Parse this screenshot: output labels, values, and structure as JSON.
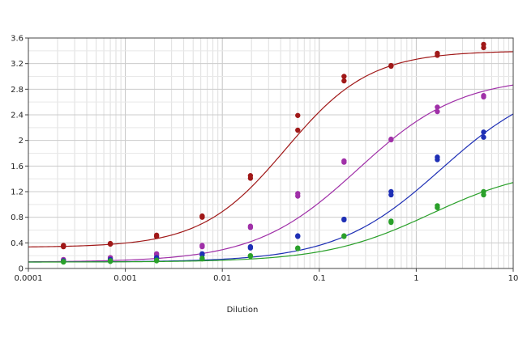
{
  "chart_data": {
    "type": "scatter",
    "title": "",
    "xlabel": "Dilution",
    "ylabel": "",
    "x_scale": "log",
    "xlim": [
      0.0001,
      10
    ],
    "ylim": [
      0,
      3.6
    ],
    "grid": true,
    "legend": "none",
    "x_tick_labels": [
      "0.0001",
      "0.001",
      "0.01",
      "0.1",
      "1",
      "10"
    ],
    "y_tick_labels": [
      "0",
      "0.4",
      "0.8",
      "1.2",
      "1.6",
      "2",
      "2.4",
      "2.8",
      "3.2",
      "3.6"
    ],
    "x": [
      0.00023,
      0.0007,
      0.0021,
      0.0062,
      0.0195,
      0.06,
      0.18,
      0.55,
      1.65,
      4.95
    ],
    "series": [
      {
        "color": "#a01818",
        "points": [
          [
            0.00023,
            0.34
          ],
          [
            0.00023,
            0.36
          ],
          [
            0.0007,
            0.38
          ],
          [
            0.0007,
            0.39
          ],
          [
            0.0021,
            0.5
          ],
          [
            0.0021,
            0.52
          ],
          [
            0.0062,
            0.8
          ],
          [
            0.0062,
            0.82
          ],
          [
            0.0195,
            1.41
          ],
          [
            0.0195,
            1.45
          ],
          [
            0.06,
            2.16
          ],
          [
            0.06,
            2.39
          ],
          [
            0.18,
            2.93
          ],
          [
            0.18,
            3.0
          ],
          [
            0.55,
            3.16
          ],
          [
            0.55,
            3.17
          ],
          [
            1.65,
            3.33
          ],
          [
            1.65,
            3.36
          ],
          [
            4.95,
            3.45
          ],
          [
            4.95,
            3.5
          ]
        ],
        "fit": {
          "bottom": 0.33,
          "top": 3.4,
          "ec50": 0.045,
          "hill": 1.0
        }
      },
      {
        "color": "#a030a8",
        "points": [
          [
            0.00023,
            0.12
          ],
          [
            0.00023,
            0.14
          ],
          [
            0.0007,
            0.16
          ],
          [
            0.0007,
            0.17
          ],
          [
            0.0021,
            0.21
          ],
          [
            0.0021,
            0.23
          ],
          [
            0.0062,
            0.34
          ],
          [
            0.0062,
            0.36
          ],
          [
            0.0195,
            0.64
          ],
          [
            0.0195,
            0.66
          ],
          [
            0.06,
            1.13
          ],
          [
            0.06,
            1.17
          ],
          [
            0.18,
            1.66
          ],
          [
            0.18,
            1.68
          ],
          [
            0.55,
            2.01
          ],
          [
            0.55,
            2.02
          ],
          [
            1.65,
            2.45
          ],
          [
            1.65,
            2.52
          ],
          [
            4.95,
            2.68
          ],
          [
            4.95,
            2.7
          ]
        ],
        "fit": {
          "bottom": 0.1,
          "top": 3.0,
          "ec50": 0.25,
          "hill": 0.82
        }
      },
      {
        "color": "#1e2fb5",
        "points": [
          [
            0.00023,
            0.11
          ],
          [
            0.00023,
            0.12
          ],
          [
            0.0007,
            0.13
          ],
          [
            0.0007,
            0.14
          ],
          [
            0.0021,
            0.16
          ],
          [
            0.0021,
            0.17
          ],
          [
            0.0062,
            0.21
          ],
          [
            0.0062,
            0.23
          ],
          [
            0.0195,
            0.32
          ],
          [
            0.0195,
            0.34
          ],
          [
            0.06,
            0.5
          ],
          [
            0.06,
            0.51
          ],
          [
            0.18,
            0.76
          ],
          [
            0.18,
            0.77
          ],
          [
            0.55,
            1.15
          ],
          [
            0.55,
            1.2
          ],
          [
            1.65,
            1.7
          ],
          [
            1.65,
            1.74
          ],
          [
            4.95,
            2.05
          ],
          [
            4.95,
            2.13
          ]
        ],
        "fit": {
          "bottom": 0.1,
          "top": 3.0,
          "ec50": 1.8,
          "hill": 0.8
        }
      },
      {
        "color": "#2aa02a",
        "points": [
          [
            0.00023,
            0.1
          ],
          [
            0.00023,
            0.11
          ],
          [
            0.0007,
            0.11
          ],
          [
            0.0007,
            0.12
          ],
          [
            0.0021,
            0.12
          ],
          [
            0.0021,
            0.13
          ],
          [
            0.0062,
            0.15
          ],
          [
            0.0062,
            0.16
          ],
          [
            0.0195,
            0.19
          ],
          [
            0.0195,
            0.2
          ],
          [
            0.06,
            0.31
          ],
          [
            0.06,
            0.32
          ],
          [
            0.18,
            0.5
          ],
          [
            0.18,
            0.51
          ],
          [
            0.55,
            0.72
          ],
          [
            0.55,
            0.74
          ],
          [
            1.65,
            0.95
          ],
          [
            1.65,
            0.98
          ],
          [
            4.95,
            1.15
          ],
          [
            4.95,
            1.2
          ]
        ],
        "fit": {
          "bottom": 0.1,
          "top": 1.6,
          "ec50": 1.4,
          "hill": 0.8
        }
      }
    ]
  }
}
